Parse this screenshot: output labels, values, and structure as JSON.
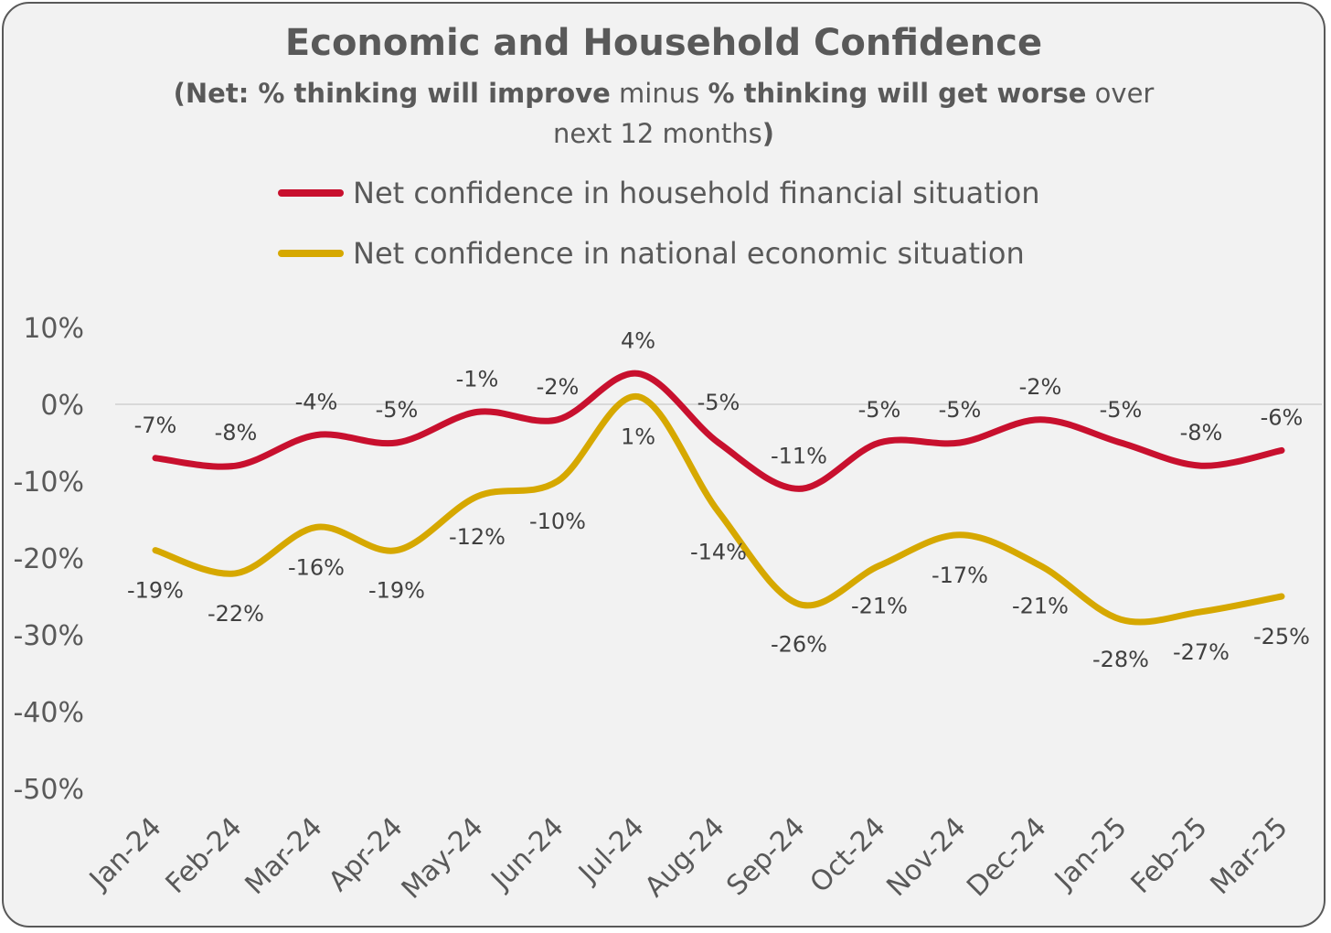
{
  "title": "Economic and Household Confidence",
  "subtitle": {
    "p1": "(Net: % thinking will improve",
    "p2": " minus ",
    "p3": "% thinking will get worse",
    "p4": " over next 12 months",
    "p5": ")"
  },
  "colors": {
    "household": "#c8102e",
    "national": "#d6a800",
    "gridline": "#d9d9d9",
    "text": "#595959"
  },
  "chart_data": {
    "type": "line",
    "categories": [
      "Jan-24",
      "Feb-24",
      "Mar-24",
      "Apr-24",
      "May-24",
      "Jun-24",
      "Jul-24",
      "Aug-24",
      "Sep-24",
      "Oct-24",
      "Nov-24",
      "Dec-24",
      "Jan-25",
      "Feb-25",
      "Mar-25"
    ],
    "ylim": [
      -50,
      10
    ],
    "yticks": [
      10,
      0,
      -10,
      -20,
      -30,
      -40,
      -50
    ],
    "ytick_labels": [
      "10%",
      "0%",
      "-10%",
      "-20%",
      "-30%",
      "-40%",
      "-50%"
    ],
    "grid": false,
    "zero_line": true,
    "legend_position": "top",
    "series": [
      {
        "name": "Net confidence in household financial situation",
        "color": "#c8102e",
        "values": [
          -7,
          -8,
          -4,
          -5,
          -1,
          -2,
          4,
          -5,
          -11,
          -5,
          -5,
          -2,
          -5,
          -8,
          -6
        ],
        "labels": [
          "-7%",
          "-8%",
          "-4%",
          "-5%",
          "-1%",
          "-2%",
          "4%",
          "-5%",
          "-11%",
          "-5%",
          "-5%",
          "-2%",
          "-5%",
          "-8%",
          "-6%"
        ]
      },
      {
        "name": "Net confidence in national economic situation",
        "color": "#d6a800",
        "values": [
          -19,
          -22,
          -16,
          -19,
          -12,
          -10,
          1,
          -14,
          -26,
          -21,
          -17,
          -21,
          -28,
          -27,
          -25
        ],
        "labels": [
          "-19%",
          "-22%",
          "-16%",
          "-19%",
          "-12%",
          "-10%",
          "1%",
          "-14%",
          "-26%",
          "-21%",
          "-17%",
          "-21%",
          "-28%",
          "-27%",
          "-25%"
        ]
      }
    ]
  }
}
